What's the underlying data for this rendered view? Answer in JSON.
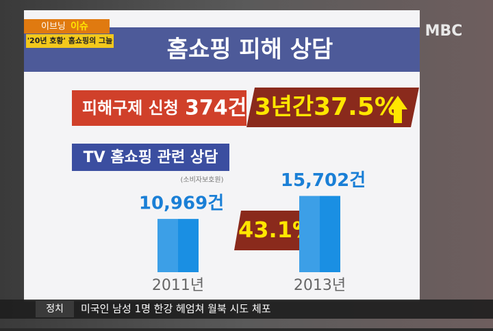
{
  "badge": {
    "program": "이브닝",
    "segment": "이슈",
    "headline": "'20년 호황' 홈쇼핑의 그늘"
  },
  "logo": "MBC",
  "board": {
    "title": "홈쇼핑 피해 상담",
    "claim_label": "피해구제 신청",
    "claim_count": "374건",
    "period": "3년간",
    "growth": "37.5%"
  },
  "chart_data": {
    "type": "bar",
    "title": "TV 홈쇼핑 관련 상담",
    "subtitle": "(소비자보호원)",
    "categories": [
      "2011년",
      "2013년"
    ],
    "values": [
      10969,
      15702
    ],
    "value_labels": [
      "10,969건",
      "15,702건"
    ],
    "color": "#1a8fe3",
    "ylim": [
      0,
      20000
    ],
    "annotation": "43.1%"
  },
  "ticker": {
    "section": "정치",
    "text": "미국인 남성 1명 한강 헤엄쳐 월북 시도 체포"
  }
}
